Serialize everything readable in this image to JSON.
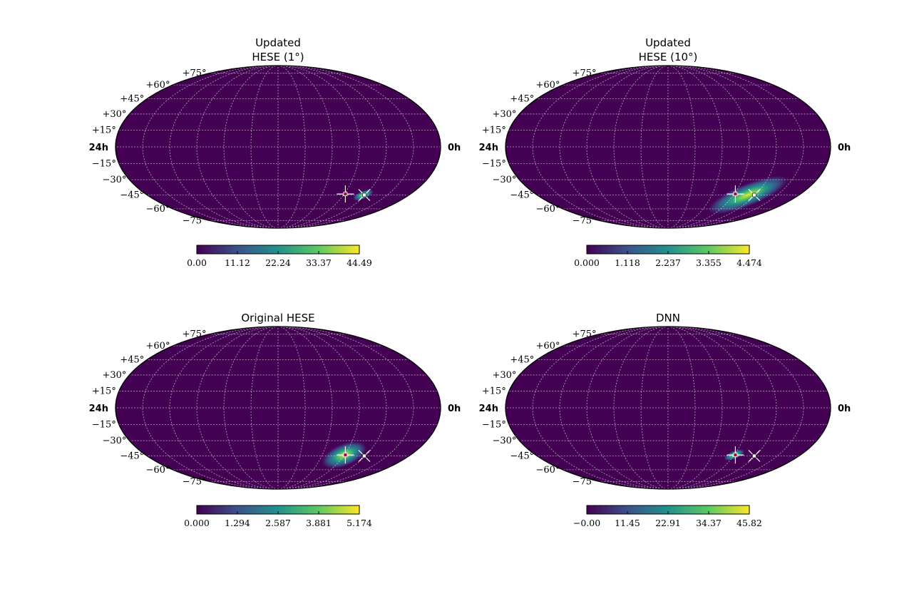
{
  "chart_data": [
    {
      "type": "heatmap",
      "projection": "mollweide",
      "title_lines": [
        "Updated",
        "HESE (1°)"
      ],
      "lat_labels": [
        "+75°",
        "+60°",
        "+45°",
        "+30°",
        "+15°",
        "−15°",
        "−30°",
        "−45°",
        "−60°",
        "−75°"
      ],
      "ra_left": "24h",
      "ra_right": "0h",
      "grid": true,
      "colormap": "viridis",
      "colorbar": {
        "ticks": [
          "0.00",
          "11.12",
          "22.24",
          "33.37",
          "44.49"
        ],
        "range": [
          0,
          44.49
        ]
      },
      "hotspot": {
        "ra_h": 4.2,
        "dec_deg": -45,
        "peak": 44.49,
        "spread": "narrow"
      },
      "markers": [
        {
          "kind": "plus",
          "ra_h": 5.9,
          "dec_deg": -44
        },
        {
          "kind": "x",
          "ra_h": 4.1,
          "dec_deg": -45
        }
      ]
    },
    {
      "type": "heatmap",
      "projection": "mollweide",
      "title_lines": [
        "Updated",
        "HESE (10°)"
      ],
      "lat_labels": [
        "+75°",
        "+60°",
        "+45°",
        "+30°",
        "+15°",
        "−15°",
        "−30°",
        "−45°",
        "−60°",
        "−75°"
      ],
      "ra_left": "24h",
      "ra_right": "0h",
      "grid": true,
      "colormap": "viridis",
      "colorbar": {
        "ticks": [
          "0.000",
          "1.118",
          "2.237",
          "3.355",
          "4.474"
        ],
        "range": [
          0,
          4.474
        ]
      },
      "hotspot": {
        "ra_h": 4.7,
        "dec_deg": -45,
        "peak": 4.474,
        "spread": "wide"
      },
      "markers": [
        {
          "kind": "plus",
          "ra_h": 5.9,
          "dec_deg": -44
        },
        {
          "kind": "x",
          "ra_h": 4.1,
          "dec_deg": -45
        }
      ]
    },
    {
      "type": "heatmap",
      "projection": "mollweide",
      "title_lines": [
        "Original HESE"
      ],
      "lat_labels": [
        "+75°",
        "+60°",
        "+45°",
        "+30°",
        "+15°",
        "−15°",
        "−30°",
        "−45°",
        "−60°",
        "−75°"
      ],
      "ra_left": "24h",
      "ra_right": "0h",
      "grid": true,
      "colormap": "viridis",
      "colorbar": {
        "ticks": [
          "0.000",
          "1.294",
          "2.587",
          "3.881",
          "5.174"
        ],
        "range": [
          0,
          5.174
        ]
      },
      "hotspot": {
        "ra_h": 6.0,
        "dec_deg": -44,
        "peak": 5.174,
        "spread": "medium"
      },
      "markers": [
        {
          "kind": "plus",
          "ra_h": 5.9,
          "dec_deg": -44
        },
        {
          "kind": "x",
          "ra_h": 4.1,
          "dec_deg": -45
        }
      ]
    },
    {
      "type": "heatmap",
      "projection": "mollweide",
      "title_lines": [
        "DNN"
      ],
      "lat_labels": [
        "+75°",
        "+60°",
        "+45°",
        "+30°",
        "+15°",
        "−15°",
        "−30°",
        "−45°",
        "−60°",
        "−75°"
      ],
      "ra_left": "24h",
      "ra_right": "0h",
      "grid": true,
      "colormap": "viridis",
      "colorbar": {
        "ticks": [
          "−0.00",
          "11.45",
          "22.91",
          "34.37",
          "45.82"
        ],
        "range": [
          0,
          45.82
        ]
      },
      "hotspot": {
        "ra_h": 6.0,
        "dec_deg": -44,
        "peak": 45.82,
        "spread": "narrow"
      },
      "markers": [
        {
          "kind": "plus",
          "ra_h": 5.9,
          "dec_deg": -44
        },
        {
          "kind": "x",
          "ra_h": 4.1,
          "dec_deg": -45
        }
      ]
    }
  ]
}
